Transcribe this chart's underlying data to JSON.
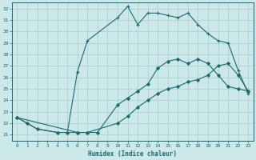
{
  "xlabel": "Humidex (Indice chaleur)",
  "bg_color": "#cce8e8",
  "grid_color": "#aacccc",
  "line_color": "#1a6b6b",
  "xlim": [
    -0.5,
    23.5
  ],
  "ylim": [
    20.5,
    32.5
  ],
  "xticks": [
    0,
    1,
    2,
    3,
    4,
    5,
    6,
    7,
    8,
    9,
    10,
    11,
    12,
    13,
    14,
    15,
    16,
    17,
    18,
    19,
    20,
    21,
    22,
    23
  ],
  "yticks": [
    21,
    22,
    23,
    24,
    25,
    26,
    27,
    28,
    29,
    30,
    31,
    32
  ],
  "series2_x": [
    0,
    1,
    2,
    4,
    5,
    6,
    7,
    10,
    11,
    12,
    13,
    14,
    15,
    16,
    17,
    18,
    19,
    20,
    21,
    22,
    23
  ],
  "series2_y": [
    22.5,
    22,
    21.5,
    21.2,
    21.2,
    26.5,
    29.2,
    31.2,
    32.2,
    30.6,
    31.6,
    31.6,
    31.4,
    31.2,
    31.6,
    30.6,
    29.8,
    29.2,
    29.0,
    26.6,
    24.6
  ],
  "series1_x": [
    0,
    1,
    2,
    4,
    5,
    6,
    7,
    8,
    10,
    11,
    12,
    13,
    14,
    15,
    16,
    17,
    18,
    19,
    20,
    21,
    22,
    23
  ],
  "series1_y": [
    22.5,
    22,
    21.5,
    21.2,
    21.2,
    21.2,
    21.2,
    21.2,
    23.6,
    24.2,
    24.8,
    25.4,
    26.8,
    27.4,
    27.6,
    27.2,
    27.6,
    27.2,
    26.2,
    25.2,
    25.0,
    24.8
  ],
  "series3_x": [
    0,
    6,
    7,
    10,
    11,
    12,
    13,
    14,
    15,
    16,
    17,
    18,
    19,
    20,
    21,
    22,
    23
  ],
  "series3_y": [
    22.5,
    21.2,
    21.2,
    22.0,
    22.6,
    23.4,
    24.0,
    24.6,
    25.0,
    25.2,
    25.6,
    25.8,
    26.2,
    27.0,
    27.2,
    26.2,
    24.8
  ]
}
